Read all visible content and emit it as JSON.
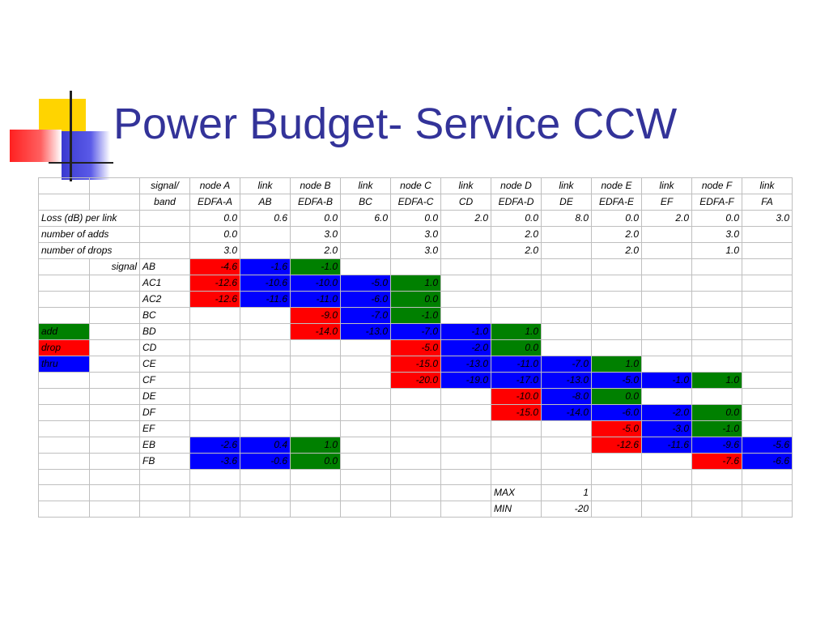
{
  "slide": {
    "title": "Power Budget- Service CCW"
  },
  "colors": {
    "red": "#ff0000",
    "blue": "#0000ff",
    "green": "#008000",
    "title": "#333399"
  },
  "table": {
    "header_rows": [
      [
        "",
        "",
        "signal/",
        "node A",
        "link",
        "node B",
        "link",
        "node C",
        "link",
        "node D",
        "link",
        "node E",
        "link",
        "node F",
        "link"
      ],
      [
        "",
        "",
        "band",
        "EDFA-A",
        "AB",
        "EDFA-B",
        "BC",
        "EDFA-C",
        "CD",
        "EDFA-D",
        "DE",
        "EDFA-E",
        "EF",
        "EDFA-F",
        "FA"
      ]
    ],
    "info_rows": [
      {
        "label": "Loss (dB) per link",
        "values": [
          "0.0",
          "0.6",
          "0.0",
          "6.0",
          "0.0",
          "2.0",
          "0.0",
          "8.0",
          "0.0",
          "2.0",
          "0.0",
          "3.0"
        ]
      },
      {
        "label": "number of adds",
        "values": [
          "0.0",
          "",
          "3.0",
          "",
          "3.0",
          "",
          "2.0",
          "",
          "2.0",
          "",
          "3.0",
          ""
        ]
      },
      {
        "label": "number of drops",
        "values": [
          "3.0",
          "",
          "2.0",
          "",
          "3.0",
          "",
          "2.0",
          "",
          "2.0",
          "",
          "1.0",
          ""
        ]
      }
    ],
    "signal_label": "signal",
    "legend": [
      {
        "label": "add",
        "color": "green"
      },
      {
        "label": "drop",
        "color": "red"
      },
      {
        "label": "thru",
        "color": "blue"
      }
    ],
    "signal_rows": [
      {
        "name": "AB",
        "cells": [
          [
            "-4.6",
            "red"
          ],
          [
            "-1.6",
            "blue"
          ],
          [
            "-1.0",
            "green"
          ],
          [
            "",
            ""
          ],
          [
            "",
            ""
          ],
          [
            "",
            ""
          ],
          [
            "",
            ""
          ],
          [
            "",
            ""
          ],
          [
            "",
            ""
          ],
          [
            "",
            ""
          ],
          [
            "",
            ""
          ],
          [
            "",
            ""
          ]
        ]
      },
      {
        "name": "AC1",
        "cells": [
          [
            "-12.6",
            "red"
          ],
          [
            "-10.6",
            "blue"
          ],
          [
            "-10.0",
            "blue"
          ],
          [
            "-5.0",
            "blue"
          ],
          [
            "1.0",
            "green"
          ],
          [
            "",
            ""
          ],
          [
            "",
            ""
          ],
          [
            "",
            ""
          ],
          [
            "",
            ""
          ],
          [
            "",
            ""
          ],
          [
            "",
            ""
          ],
          [
            "",
            ""
          ]
        ]
      },
      {
        "name": "AC2",
        "cells": [
          [
            "-12.6",
            "red"
          ],
          [
            "-11.6",
            "blue"
          ],
          [
            "-11.0",
            "blue"
          ],
          [
            "-6.0",
            "blue"
          ],
          [
            "0.0",
            "green"
          ],
          [
            "",
            ""
          ],
          [
            "",
            ""
          ],
          [
            "",
            ""
          ],
          [
            "",
            ""
          ],
          [
            "",
            ""
          ],
          [
            "",
            ""
          ],
          [
            "",
            ""
          ]
        ]
      },
      {
        "name": "BC",
        "cells": [
          [
            "",
            ""
          ],
          [
            "",
            ""
          ],
          [
            "-9.0",
            "red"
          ],
          [
            "-7.0",
            "blue"
          ],
          [
            "-1.0",
            "green"
          ],
          [
            "",
            ""
          ],
          [
            "",
            ""
          ],
          [
            "",
            ""
          ],
          [
            "",
            ""
          ],
          [
            "",
            ""
          ],
          [
            "",
            ""
          ],
          [
            "",
            ""
          ]
        ]
      },
      {
        "name": "BD",
        "cells": [
          [
            "",
            ""
          ],
          [
            "",
            ""
          ],
          [
            "-14.0",
            "red"
          ],
          [
            "-13.0",
            "blue"
          ],
          [
            "-7.0",
            "blue"
          ],
          [
            "-1.0",
            "blue"
          ],
          [
            "1.0",
            "green"
          ],
          [
            "",
            ""
          ],
          [
            "",
            ""
          ],
          [
            "",
            ""
          ],
          [
            "",
            ""
          ],
          [
            "",
            ""
          ]
        ]
      },
      {
        "name": "CD",
        "cells": [
          [
            "",
            ""
          ],
          [
            "",
            ""
          ],
          [
            "",
            ""
          ],
          [
            "",
            ""
          ],
          [
            "-5.0",
            "red"
          ],
          [
            "-2.0",
            "blue"
          ],
          [
            "0.0",
            "green"
          ],
          [
            "",
            ""
          ],
          [
            "",
            ""
          ],
          [
            "",
            ""
          ],
          [
            "",
            ""
          ],
          [
            "",
            ""
          ]
        ]
      },
      {
        "name": "CE",
        "cells": [
          [
            "",
            ""
          ],
          [
            "",
            ""
          ],
          [
            "",
            ""
          ],
          [
            "",
            ""
          ],
          [
            "-15.0",
            "red"
          ],
          [
            "-13.0",
            "blue"
          ],
          [
            "-11.0",
            "blue"
          ],
          [
            "-7.0",
            "blue"
          ],
          [
            "1.0",
            "green"
          ],
          [
            "",
            ""
          ],
          [
            "",
            ""
          ],
          [
            "",
            ""
          ]
        ]
      },
      {
        "name": "CF",
        "cells": [
          [
            "",
            ""
          ],
          [
            "",
            ""
          ],
          [
            "",
            ""
          ],
          [
            "",
            ""
          ],
          [
            "-20.0",
            "red"
          ],
          [
            "-19.0",
            "blue"
          ],
          [
            "-17.0",
            "blue"
          ],
          [
            "-13.0",
            "blue"
          ],
          [
            "-5.0",
            "blue"
          ],
          [
            "-1.0",
            "blue"
          ],
          [
            "1.0",
            "green"
          ],
          [
            "",
            ""
          ]
        ]
      },
      {
        "name": "DE",
        "cells": [
          [
            "",
            ""
          ],
          [
            "",
            ""
          ],
          [
            "",
            ""
          ],
          [
            "",
            ""
          ],
          [
            "",
            ""
          ],
          [
            "",
            ""
          ],
          [
            "-10.0",
            "red"
          ],
          [
            "-8.0",
            "blue"
          ],
          [
            "0.0",
            "green"
          ],
          [
            "",
            ""
          ],
          [
            "",
            ""
          ],
          [
            "",
            ""
          ]
        ]
      },
      {
        "name": "DF",
        "cells": [
          [
            "",
            ""
          ],
          [
            "",
            ""
          ],
          [
            "",
            ""
          ],
          [
            "",
            ""
          ],
          [
            "",
            ""
          ],
          [
            "",
            ""
          ],
          [
            "-15.0",
            "red"
          ],
          [
            "-14.0",
            "blue"
          ],
          [
            "-6.0",
            "blue"
          ],
          [
            "-2.0",
            "blue"
          ],
          [
            "0.0",
            "green"
          ],
          [
            "",
            ""
          ]
        ]
      },
      {
        "name": "EF",
        "cells": [
          [
            "",
            ""
          ],
          [
            "",
            ""
          ],
          [
            "",
            ""
          ],
          [
            "",
            ""
          ],
          [
            "",
            ""
          ],
          [
            "",
            ""
          ],
          [
            "",
            ""
          ],
          [
            "",
            ""
          ],
          [
            "-5.0",
            "red"
          ],
          [
            "-3.0",
            "blue"
          ],
          [
            "-1.0",
            "green"
          ],
          [
            "",
            ""
          ]
        ]
      },
      {
        "name": "EB",
        "cells": [
          [
            "-2.6",
            "blue"
          ],
          [
            "0.4",
            "blue"
          ],
          [
            "1.0",
            "green"
          ],
          [
            "",
            ""
          ],
          [
            "",
            ""
          ],
          [
            "",
            ""
          ],
          [
            "",
            ""
          ],
          [
            "",
            ""
          ],
          [
            "-12.6",
            "red"
          ],
          [
            "-11.6",
            "blue"
          ],
          [
            "-9.6",
            "blue"
          ],
          [
            "-5.6",
            "blue"
          ]
        ]
      },
      {
        "name": "FB",
        "cells": [
          [
            "-3.6",
            "blue"
          ],
          [
            "-0.6",
            "blue"
          ],
          [
            "0.0",
            "green"
          ],
          [
            "",
            ""
          ],
          [
            "",
            ""
          ],
          [
            "",
            ""
          ],
          [
            "",
            ""
          ],
          [
            "",
            ""
          ],
          [
            "",
            ""
          ],
          [
            "",
            ""
          ],
          [
            "-7.6",
            "red"
          ],
          [
            "-6.6",
            "blue"
          ]
        ]
      }
    ],
    "summary": [
      {
        "label": "MAX",
        "value": "1"
      },
      {
        "label": "MIN",
        "value": "-20"
      }
    ]
  }
}
